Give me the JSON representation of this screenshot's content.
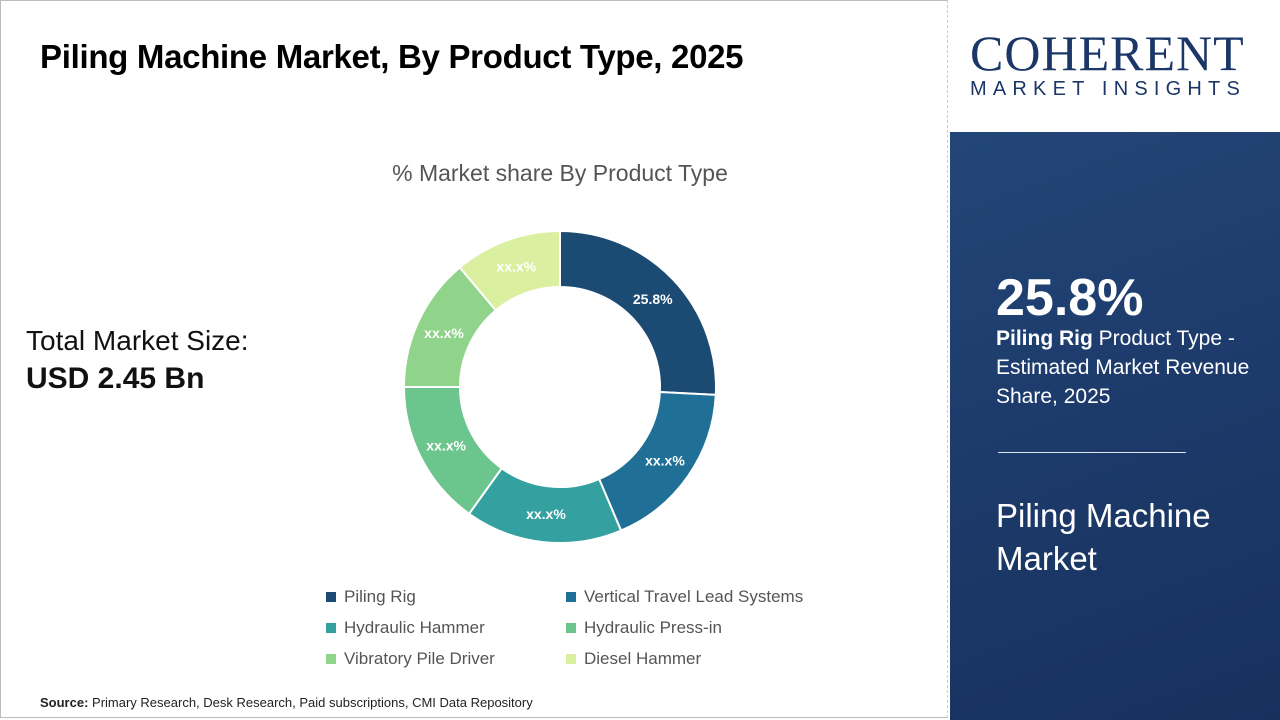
{
  "title": "Piling Machine Market, By Product Type, 2025",
  "total": {
    "label": "Total Market Size:",
    "value": "USD 2.45 Bn"
  },
  "logo": {
    "top": "COHERENT",
    "bottom": "MARKET INSIGHTS"
  },
  "panel": {
    "highlight": "25.8%",
    "desc_bold": "Piling Rig",
    "desc_rest": " Product Type - Estimated Market Revenue Share, 2025",
    "market": "Piling Machine Market"
  },
  "source": {
    "label": "Source:",
    "text": " Primary Research, Desk Research, Paid subscriptions, CMI Data Repository"
  },
  "chart_data": {
    "type": "pie",
    "variant": "donut",
    "title": "% Market share By Product Type",
    "categories": [
      "Piling Rig",
      "Vertical Travel Lead Systems",
      "Hydraulic Hammer",
      "Hydraulic Press-in",
      "Vibratory Pile Driver",
      "Diesel Hammer"
    ],
    "values": [
      25.8,
      17.8,
      16.3,
      15.1,
      13.9,
      11.1
    ],
    "labels": [
      "25.8%",
      "xx.x%",
      "xx.x%",
      "xx.x%",
      "xx.x%",
      "xx.x%"
    ],
    "colors": [
      "#1b4a72",
      "#1f6f96",
      "#35a0a0",
      "#6cc58c",
      "#8fd48a",
      "#daf0a0"
    ],
    "legend": "bottom"
  }
}
